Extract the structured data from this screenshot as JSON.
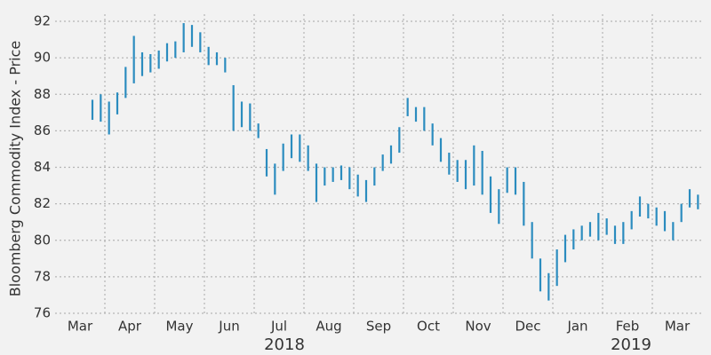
{
  "chart_data": {
    "type": "range-bar",
    "y_label": "Bloomberg Commodity Index - Price",
    "color": "#2b8cbf",
    "grid": true,
    "ylim": [
      76,
      92
    ],
    "yticks": [
      76,
      78,
      80,
      82,
      84,
      86,
      88,
      90,
      92
    ],
    "categories": [
      null,
      null,
      "Mar",
      null,
      null,
      null,
      null,
      null,
      "Apr",
      null,
      null,
      null,
      null,
      null,
      "May",
      null,
      null,
      null,
      null,
      null,
      "Jun",
      null,
      null,
      null,
      null,
      null,
      "Jul",
      null,
      null,
      null,
      null,
      null,
      "Aug",
      null,
      null,
      null,
      null,
      null,
      "Sep",
      null,
      null,
      null,
      null,
      null,
      "Oct",
      null,
      null,
      null,
      null,
      null,
      "Nov",
      null,
      null,
      null,
      null,
      null,
      "Dec",
      null,
      null,
      null,
      null,
      null,
      "Jan",
      null,
      null,
      null,
      null,
      null,
      "Feb",
      null,
      null,
      null,
      null,
      null,
      "Mar",
      null,
      null,
      null
    ],
    "year_labels": [
      "2018",
      "2019"
    ],
    "high": [
      null,
      null,
      null,
      null,
      87.7,
      88,
      87.6,
      88.1,
      89.5,
      91.2,
      90.3,
      90.2,
      90.4,
      90.8,
      90.9,
      91.9,
      91.8,
      91.4,
      90.6,
      90.3,
      90,
      88.5,
      87.6,
      87.5,
      86.4,
      85,
      84.2,
      85.3,
      85.8,
      85.8,
      85.2,
      84.2,
      84,
      84,
      84.1,
      84,
      83.6,
      83.3,
      84,
      84.7,
      85.2,
      86.2,
      87.8,
      87.3,
      87.3,
      86.4,
      85.6,
      84.8,
      84.4,
      84.4,
      85.2,
      84.9,
      83.5,
      82.8,
      84,
      84,
      83.2,
      81,
      79,
      78.2,
      79.5,
      80.3,
      80.6,
      80.8,
      81,
      81.5,
      81.2,
      80.8,
      81,
      81.6,
      82.4,
      82,
      81.8,
      81.6,
      81,
      82,
      82.8,
      82.5
    ],
    "low": [
      null,
      null,
      null,
      null,
      86.6,
      86.5,
      85.8,
      86.9,
      87.8,
      88.6,
      89,
      89.2,
      89.4,
      89.8,
      90,
      90.3,
      90.6,
      90.3,
      89.6,
      89.6,
      89.2,
      86,
      86.2,
      86,
      85.6,
      83.5,
      82.5,
      83.8,
      84.5,
      84.3,
      83.8,
      82.1,
      83,
      83.2,
      83.3,
      82.8,
      82.4,
      82.1,
      83,
      83.8,
      84.2,
      84.8,
      86.8,
      86.5,
      86,
      85.2,
      84.3,
      83.6,
      83.2,
      82.8,
      83,
      82.5,
      81.5,
      80.9,
      82.6,
      82.5,
      80.8,
      79,
      77.2,
      76.7,
      77.5,
      78.8,
      79.5,
      80,
      80.2,
      80,
      80.3,
      79.8,
      79.8,
      80.6,
      81.3,
      81.2,
      80.8,
      80.5,
      80,
      81,
      81.8,
      81.7
    ]
  }
}
